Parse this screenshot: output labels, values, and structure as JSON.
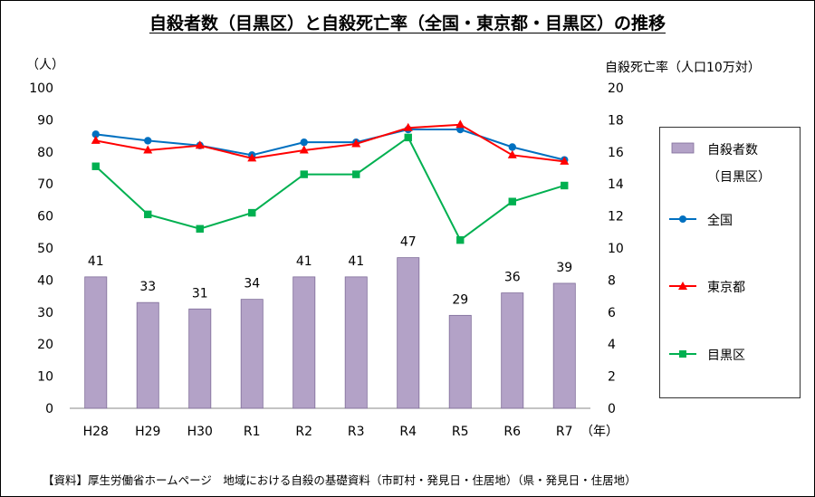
{
  "title": "自殺者数（目黒区）と自殺死亡率（全国・東京都・目黒区）の推移",
  "left_unit": "（人）",
  "right_unit": "自殺死亡率（人口10万対）",
  "x_unit": "（年）",
  "source": "【資料】厚生労働省ホームページ　地域における自殺の基礎資料（市町村・発見日・住居地）（県・発見日・住居地）",
  "legend": {
    "bar_label": "自殺者数",
    "bar_sublabel": "（目黒区）",
    "national": "全国",
    "tokyo": "東京都",
    "meguro": "目黒区"
  },
  "colors": {
    "bar": "#b3a2c7",
    "national": "#0070c0",
    "tokyo": "#ff0000",
    "meguro": "#00b050"
  },
  "chart_data": {
    "type": "bar+line",
    "title": "自殺者数（目黒区）と自殺死亡率（全国・東京都・目黒区）の推移",
    "categories": [
      "H28",
      "H29",
      "H30",
      "R1",
      "R2",
      "R3",
      "R4",
      "R5",
      "R6",
      "R7"
    ],
    "y_left": {
      "label": "（人）",
      "ylim": [
        0,
        100
      ],
      "ticks": [
        0,
        10,
        20,
        30,
        40,
        50,
        60,
        70,
        80,
        90,
        100
      ]
    },
    "y_right": {
      "label": "自殺死亡率（人口10万対）",
      "ylim": [
        0,
        20
      ],
      "ticks": [
        0,
        2,
        4,
        6,
        8,
        10,
        12,
        14,
        16,
        18,
        20
      ]
    },
    "grid": false,
    "legend_position": "right",
    "bars": {
      "name": "自殺者数（目黒区）",
      "axis": "left",
      "values": [
        41,
        33,
        31,
        34,
        41,
        41,
        47,
        29,
        36,
        39
      ]
    },
    "series": [
      {
        "name": "全国",
        "axis": "right",
        "marker": "circle",
        "values": [
          17.1,
          16.7,
          16.4,
          15.8,
          16.6,
          16.6,
          17.4,
          17.4,
          16.3,
          15.5
        ]
      },
      {
        "name": "東京都",
        "axis": "right",
        "marker": "triangle",
        "values": [
          16.7,
          16.1,
          16.4,
          15.6,
          16.1,
          16.5,
          17.5,
          17.7,
          15.8,
          15.4
        ]
      },
      {
        "name": "目黒区",
        "axis": "right",
        "marker": "square",
        "values": [
          15.1,
          12.1,
          11.2,
          12.2,
          14.6,
          14.6,
          16.9,
          10.5,
          12.9,
          13.9
        ]
      }
    ]
  }
}
